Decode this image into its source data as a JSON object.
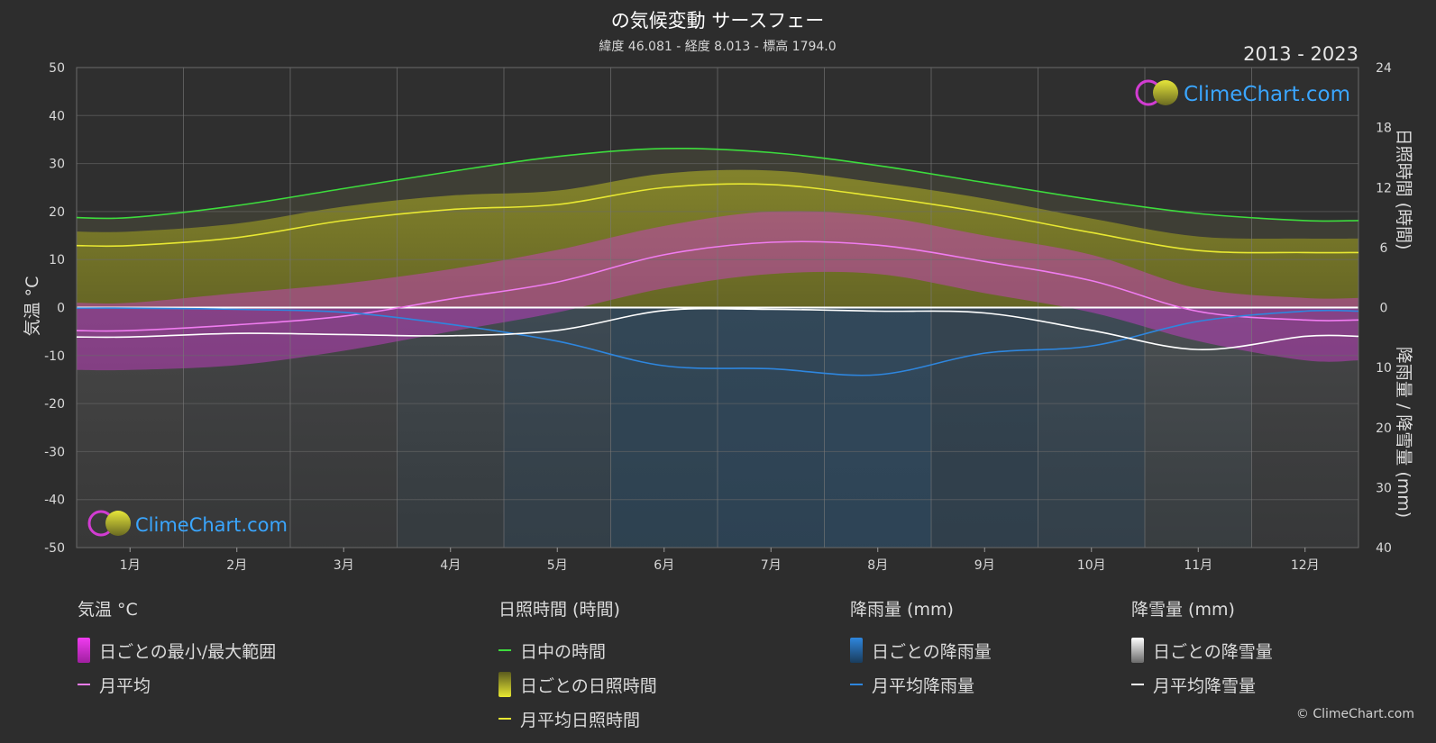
{
  "title": "の気候変動 サースフェー",
  "subtitle": "緯度 46.081 - 経度 8.013 - 標高 1794.0",
  "year_range": "2013 - 2023",
  "brand": "ClimeChart.com",
  "copyright": "© ClimeChart.com",
  "colors": {
    "background": "#2d2d2d",
    "daylight": "#3ddc3d",
    "sunshine_line": "#e8e832",
    "sunshine_fill": "#8e8e2c",
    "temp_range": "#d23cd2",
    "temp_line": "#f07cf0",
    "rain_line": "#2e86de",
    "rain_fill": "#1f6fb0",
    "snow_line": "#ffffff",
    "snow_fill": "#8a8a8a",
    "brand_blue": "#3aa6ff"
  },
  "chart_data": {
    "type": "line",
    "categories": [
      "1月",
      "2月",
      "3月",
      "4月",
      "5月",
      "6月",
      "7月",
      "8月",
      "9月",
      "10月",
      "11月",
      "12月"
    ],
    "left_axis": {
      "label": "気温 °C",
      "range": [
        -50,
        50
      ],
      "ticks": [
        50,
        40,
        30,
        20,
        10,
        0,
        -10,
        -20,
        -30,
        -40,
        -50
      ]
    },
    "right_axis_top": {
      "label": "日照時間 (時間)",
      "range": [
        0,
        24
      ],
      "ticks": [
        24,
        18,
        12,
        6,
        0
      ]
    },
    "right_axis_bottom": {
      "label": "降雨量 / 降雪量 (mm)",
      "range": [
        0,
        40
      ],
      "ticks": [
        0,
        10,
        20,
        30,
        40
      ]
    },
    "series": [
      {
        "name": "日中の時間",
        "axis": "sunshine",
        "values": [
          9.0,
          10.2,
          11.9,
          13.6,
          15.1,
          15.9,
          15.5,
          14.2,
          12.5,
          10.8,
          9.4,
          8.7
        ]
      },
      {
        "name": "月平均日照時間",
        "axis": "sunshine",
        "values": [
          6.2,
          7.0,
          8.7,
          9.8,
          10.3,
          12.0,
          12.3,
          11.1,
          9.5,
          7.5,
          5.7,
          5.5
        ]
      },
      {
        "name": "月平均",
        "axis": "temp",
        "values": [
          -4.8,
          -3.6,
          -1.8,
          1.8,
          5.3,
          11.0,
          13.6,
          13.0,
          9.6,
          5.6,
          -0.8,
          -2.6
        ]
      },
      {
        "name": "月平均降雨量",
        "axis": "precip",
        "values": [
          0.1,
          0.3,
          0.8,
          2.8,
          5.6,
          9.7,
          10.2,
          11.2,
          7.6,
          6.4,
          2.3,
          0.6
        ]
      },
      {
        "name": "月平均降雪量",
        "axis": "precip",
        "values": [
          4.9,
          4.3,
          4.5,
          4.7,
          3.8,
          0.5,
          0.3,
          0.6,
          0.9,
          3.8,
          7.0,
          4.8
        ]
      }
    ],
    "temp_range_band": {
      "name": "日ごとの最小/最大範囲",
      "min": [
        -13,
        -12,
        -9,
        -5,
        -1,
        4,
        7,
        7,
        3,
        -1,
        -7,
        -11
      ],
      "max": [
        1,
        3,
        5,
        8,
        12,
        17,
        20,
        19,
        15,
        11,
        4,
        2
      ]
    },
    "grid": true
  },
  "legend": {
    "temp": {
      "title": "気温 °C",
      "items": [
        "日ごとの最小/最大範囲",
        "月平均"
      ]
    },
    "sun": {
      "title": "日照時間 (時間)",
      "items": [
        "日中の時間",
        "日ごとの日照時間",
        "月平均日照時間"
      ]
    },
    "rain": {
      "title": "降雨量 (mm)",
      "items": [
        "日ごとの降雨量",
        "月平均降雨量"
      ]
    },
    "snow": {
      "title": "降雪量 (mm)",
      "items": [
        "日ごとの降雪量",
        "月平均降雪量"
      ]
    }
  }
}
